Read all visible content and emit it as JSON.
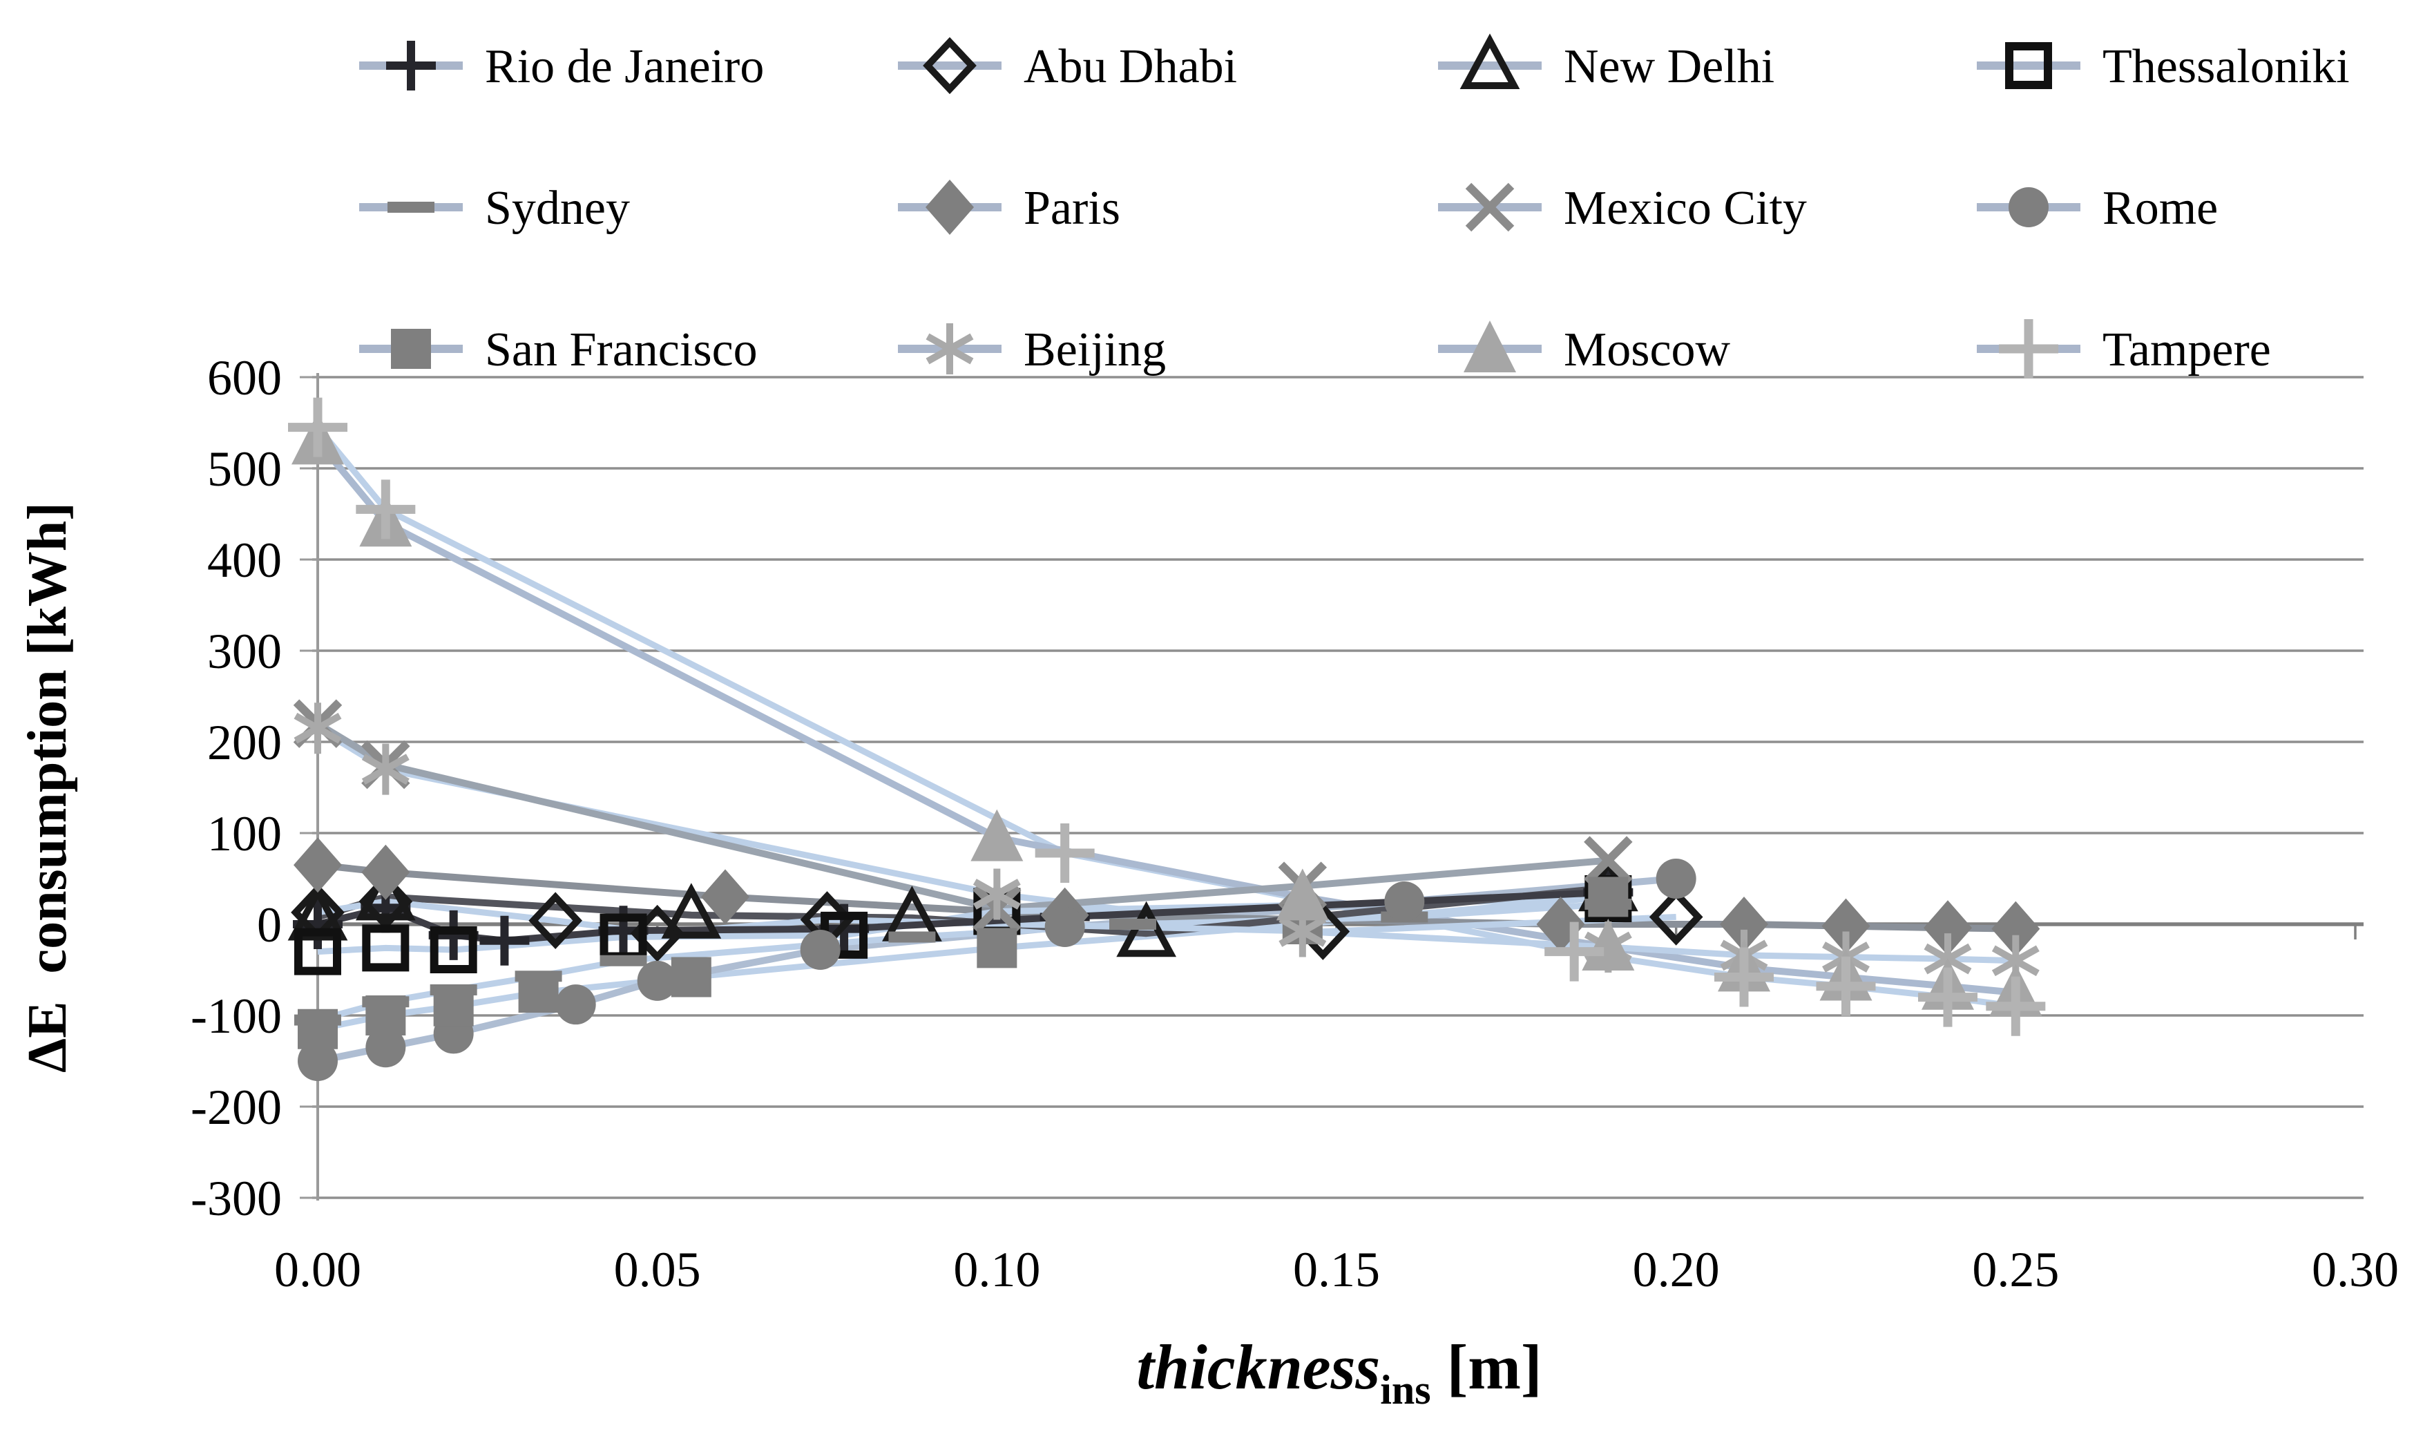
{
  "chart_data": {
    "type": "line",
    "title": "",
    "xlabel_main": "thickness",
    "xlabel_sub": "ins",
    "xlabel_unit": " [m]",
    "ylabel": "ΔE  consumption [kWh]",
    "xlim": [
      0.0,
      0.3
    ],
    "ylim": [
      -300,
      600
    ],
    "xticks": [
      "0.00",
      "0.05",
      "0.10",
      "0.15",
      "0.20",
      "0.25",
      "0.30"
    ],
    "xtick_values": [
      0.0,
      0.05,
      0.1,
      0.15,
      0.2,
      0.25,
      0.3
    ],
    "yticks": [
      "600",
      "500",
      "400",
      "300",
      "200",
      "100",
      "0",
      "-100",
      "-200",
      "-300"
    ],
    "ytick_values": [
      600,
      500,
      400,
      300,
      200,
      100,
      0,
      -100,
      -200,
      -300
    ],
    "grid": "horizontal",
    "legend_position": "top",
    "colors": {
      "gridline": "#8f8f8f",
      "zero_axis": "#7f7f7f",
      "y_axis": "#9a9a9a",
      "legend_line": "#a9b5ca",
      "pale_line": "#bcd0e8",
      "text": "#000000"
    },
    "series": [
      {
        "name": "Rio de Janeiro",
        "marker": "plus_dark",
        "marker_color": "#26262c",
        "line_color": "#3d3d45",
        "points": [
          [
            0.0,
            0
          ],
          [
            0.01,
            18
          ],
          [
            0.02,
            -12
          ],
          [
            0.0275,
            -18
          ],
          [
            0.045,
            -7
          ],
          [
            0.0775,
            -5
          ],
          [
            0.11,
            8
          ],
          [
            0.19,
            35
          ]
        ]
      },
      {
        "name": "Abu Dhabi",
        "marker": "diamond_open",
        "marker_color": "#1a1a1a",
        "line_color": "#bcd0e8",
        "points": [
          [
            0.0,
            13
          ],
          [
            0.01,
            25
          ],
          [
            0.035,
            4
          ],
          [
            0.05,
            -10
          ],
          [
            0.075,
            5
          ],
          [
            0.148,
            -8
          ],
          [
            0.2,
            8
          ]
        ]
      },
      {
        "name": "New Delhi",
        "marker": "triangle_open",
        "marker_color": "#1a1a1a",
        "line_color": "#53545c",
        "points": [
          [
            0.0,
            8
          ],
          [
            0.01,
            30
          ],
          [
            0.055,
            10
          ],
          [
            0.0875,
            7
          ],
          [
            0.122,
            -10
          ],
          [
            0.19,
            40
          ]
        ]
      },
      {
        "name": "Thessaloniki",
        "marker": "square_open",
        "marker_color": "#111111",
        "line_color": "#bcd0e8",
        "points": [
          [
            0.0,
            -30
          ],
          [
            0.01,
            -26
          ],
          [
            0.02,
            -28
          ],
          [
            0.045,
            -14
          ],
          [
            0.0775,
            -12
          ],
          [
            0.1,
            14
          ],
          [
            0.19,
            28
          ]
        ]
      },
      {
        "name": "Sydney",
        "marker": "dash",
        "marker_color": "#7f7f7f",
        "line_color": "#bcd0e8",
        "points": [
          [
            0.0,
            -105
          ],
          [
            0.01,
            -85
          ],
          [
            0.02,
            -72
          ],
          [
            0.0325,
            -57
          ],
          [
            0.045,
            -40
          ],
          [
            0.0875,
            -14
          ],
          [
            0.12,
            0
          ],
          [
            0.16,
            8
          ],
          [
            0.19,
            22
          ]
        ]
      },
      {
        "name": "Paris",
        "marker": "diamond_filled",
        "marker_color": "#7f7f7f",
        "line_color": "#8a9099",
        "points": [
          [
            0.0,
            65
          ],
          [
            0.01,
            57
          ],
          [
            0.06,
            30
          ],
          [
            0.11,
            10
          ],
          [
            0.183,
            0
          ],
          [
            0.21,
            0
          ],
          [
            0.225,
            -2
          ],
          [
            0.24,
            -4
          ],
          [
            0.25,
            -5
          ]
        ]
      },
      {
        "name": "Mexico City",
        "marker": "x_marker",
        "marker_color": "#8b8b8b",
        "line_color": "#9aa3ae",
        "points": [
          [
            0.0,
            220
          ],
          [
            0.01,
            175
          ],
          [
            0.1,
            17
          ],
          [
            0.145,
            42
          ],
          [
            0.19,
            70
          ]
        ]
      },
      {
        "name": "Rome",
        "marker": "circle_filled",
        "marker_color": "#7f7f7f",
        "line_color": "#aebdd2",
        "points": [
          [
            0.0,
            -150
          ],
          [
            0.01,
            -135
          ],
          [
            0.02,
            -120
          ],
          [
            0.038,
            -88
          ],
          [
            0.05,
            -62
          ],
          [
            0.074,
            -28
          ],
          [
            0.11,
            -3
          ],
          [
            0.16,
            25
          ],
          [
            0.2,
            50
          ]
        ]
      },
      {
        "name": "San Francisco",
        "marker": "square_filled",
        "marker_color": "#7f7f7f",
        "line_color": "#bcd0e8",
        "points": [
          [
            0.0,
            -115
          ],
          [
            0.01,
            -100
          ],
          [
            0.02,
            -90
          ],
          [
            0.0325,
            -75
          ],
          [
            0.055,
            -58
          ],
          [
            0.1,
            -26
          ],
          [
            0.145,
            0
          ],
          [
            0.19,
            30
          ]
        ]
      },
      {
        "name": "Beijing",
        "marker": "asterisk",
        "marker_color": "#a9a9a9",
        "line_color": "#bcd0e8",
        "points": [
          [
            0.0,
            215
          ],
          [
            0.01,
            170
          ],
          [
            0.1,
            33
          ],
          [
            0.145,
            -8
          ],
          [
            0.19,
            -25
          ],
          [
            0.21,
            -34
          ],
          [
            0.225,
            -36
          ],
          [
            0.24,
            -38
          ],
          [
            0.25,
            -40
          ]
        ]
      },
      {
        "name": "Moscow",
        "marker": "triangle_filled",
        "marker_color": "#a6a6a6",
        "line_color": "#aab9d0",
        "points": [
          [
            0.0,
            530
          ],
          [
            0.01,
            440
          ],
          [
            0.1,
            95
          ],
          [
            0.145,
            30
          ],
          [
            0.19,
            -25
          ],
          [
            0.21,
            -48
          ],
          [
            0.225,
            -58
          ],
          [
            0.24,
            -68
          ],
          [
            0.25,
            -75
          ]
        ]
      },
      {
        "name": "Tampere",
        "marker": "plus_light",
        "marker_color": "#b3b3b3",
        "line_color": "#bcd0e8",
        "points": [
          [
            0.0,
            545
          ],
          [
            0.01,
            455
          ],
          [
            0.11,
            78
          ],
          [
            0.185,
            -30
          ],
          [
            0.21,
            -58
          ],
          [
            0.225,
            -68
          ],
          [
            0.24,
            -80
          ],
          [
            0.25,
            -90
          ]
        ]
      }
    ]
  }
}
